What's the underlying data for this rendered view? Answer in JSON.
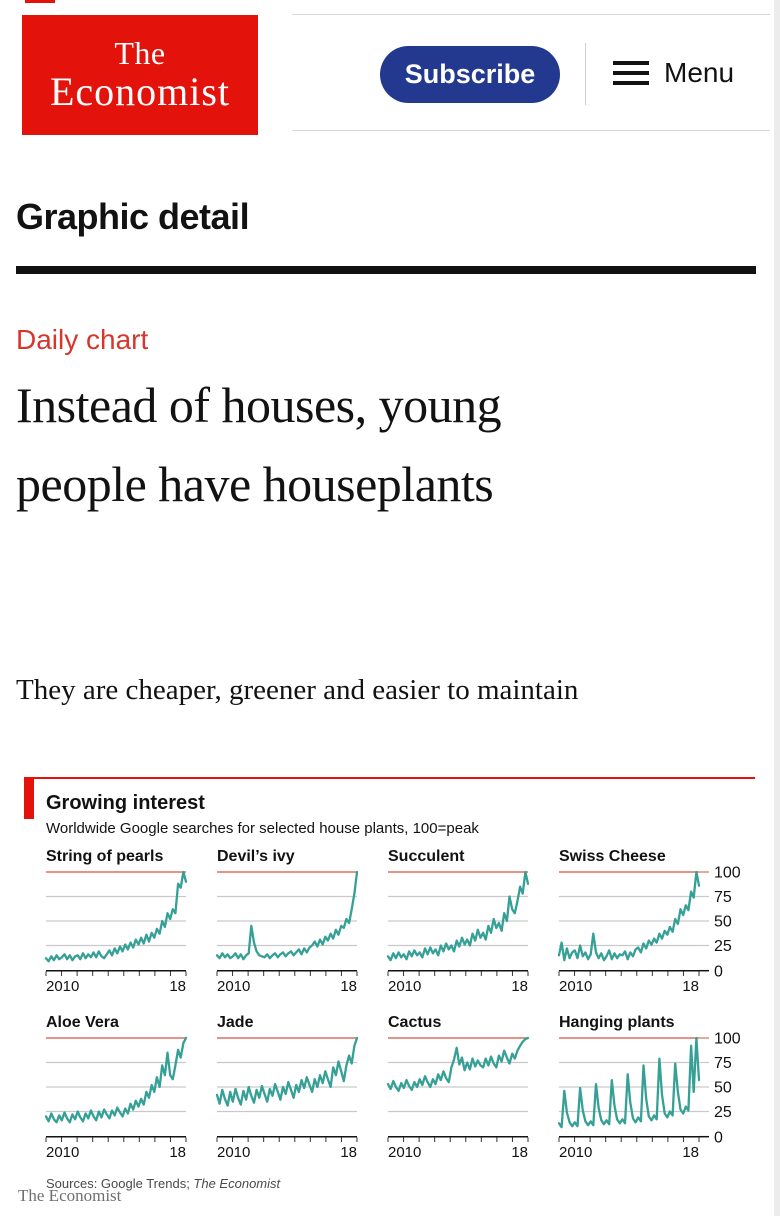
{
  "header": {
    "logo_line1": "The",
    "logo_line2": "Economist",
    "subscribe_label": "Subscribe",
    "menu_label": "Menu",
    "menu_icon": "hamburger"
  },
  "section": {
    "title": "Graphic detail"
  },
  "article": {
    "eyebrow": "Daily chart",
    "headline": "Instead of houses, young people have houseplants",
    "subheadline": "They are cheaper, greener and easier to maintain"
  },
  "chart_data": {
    "type": "line",
    "title": "Growing interest",
    "subtitle": "Worldwide Google searches for selected house plants, 100=peak",
    "x_start": 2010,
    "x_end": 2019,
    "xtick_labels": [
      "2010",
      "18"
    ],
    "ylim": [
      0,
      100
    ],
    "yticks": [
      0,
      25,
      50,
      75,
      100
    ],
    "grid": true,
    "legend_position": "panel titles above each small multiple",
    "line_color": "#35a096",
    "grid_color": "#c9c9c9",
    "top_rule_color": "#d9715f",
    "axis_color": "#121212",
    "series": [
      {
        "name": "String of pearls",
        "values": [
          12,
          9,
          14,
          10,
          15,
          11,
          13,
          16,
          11,
          15,
          10,
          14,
          15,
          11,
          17,
          12,
          16,
          13,
          18,
          13,
          19,
          14,
          12,
          16,
          20,
          15,
          22,
          17,
          24,
          19,
          26,
          21,
          28,
          23,
          31,
          26,
          33,
          27,
          36,
          29,
          38,
          33,
          42,
          37,
          50,
          44,
          58,
          52,
          62,
          58,
          88,
          84,
          100,
          90
        ]
      },
      {
        "name": "Devil’s ivy",
        "values": [
          15,
          12,
          17,
          13,
          16,
          12,
          14,
          17,
          12,
          16,
          11,
          15,
          17,
          45,
          28,
          19,
          15,
          14,
          13,
          16,
          12,
          15,
          17,
          13,
          16,
          18,
          14,
          17,
          19,
          15,
          18,
          21,
          16,
          22,
          18,
          23,
          25,
          29,
          24,
          31,
          26,
          34,
          30,
          37,
          32,
          41,
          36,
          45,
          43,
          52,
          48,
          62,
          78,
          100
        ]
      },
      {
        "name": "Succulent",
        "values": [
          14,
          10,
          17,
          12,
          18,
          13,
          16,
          11,
          19,
          14,
          20,
          15,
          18,
          13,
          22,
          16,
          23,
          17,
          21,
          15,
          25,
          19,
          27,
          21,
          25,
          19,
          30,
          24,
          33,
          26,
          31,
          25,
          37,
          30,
          41,
          33,
          38,
          31,
          45,
          38,
          52,
          43,
          48,
          40,
          58,
          50,
          75,
          62,
          58,
          70,
          85,
          78,
          100,
          88
        ]
      },
      {
        "name": "Swiss Cheese",
        "values": [
          15,
          28,
          10,
          22,
          12,
          18,
          20,
          12,
          25,
          14,
          18,
          11,
          16,
          37,
          18,
          12,
          17,
          10,
          14,
          20,
          11,
          17,
          12,
          16,
          15,
          19,
          11,
          18,
          14,
          21,
          23,
          18,
          27,
          22,
          30,
          26,
          32,
          28,
          37,
          32,
          40,
          36,
          44,
          39,
          52,
          47,
          62,
          56,
          66,
          61,
          80,
          74,
          100,
          86
        ]
      },
      {
        "name": "Aloe Vera",
        "values": [
          20,
          15,
          23,
          17,
          14,
          21,
          16,
          24,
          18,
          14,
          22,
          17,
          25,
          19,
          15,
          23,
          18,
          26,
          20,
          16,
          25,
          19,
          27,
          22,
          18,
          26,
          21,
          29,
          24,
          20,
          28,
          23,
          33,
          27,
          36,
          30,
          38,
          32,
          45,
          39,
          52,
          45,
          60,
          50,
          72,
          62,
          85,
          62,
          58,
          72,
          88,
          80,
          95,
          100
        ]
      },
      {
        "name": "Jade",
        "values": [
          42,
          33,
          47,
          38,
          31,
          45,
          35,
          48,
          39,
          32,
          46,
          37,
          50,
          41,
          34,
          47,
          39,
          51,
          43,
          35,
          48,
          41,
          53,
          45,
          37,
          50,
          43,
          55,
          47,
          39,
          52,
          45,
          57,
          49,
          60,
          52,
          45,
          58,
          50,
          62,
          54,
          66,
          58,
          50,
          70,
          62,
          76,
          66,
          56,
          72,
          82,
          74,
          92,
          100
        ]
      },
      {
        "name": "Cactus",
        "values": [
          53,
          48,
          56,
          50,
          46,
          54,
          49,
          57,
          51,
          47,
          55,
          50,
          58,
          52,
          61,
          55,
          50,
          58,
          53,
          63,
          57,
          66,
          59,
          55,
          70,
          78,
          90,
          73,
          80,
          67,
          75,
          68,
          79,
          71,
          77,
          72,
          70,
          79,
          72,
          81,
          74,
          70,
          82,
          76,
          87,
          80,
          74,
          84,
          79,
          87,
          92,
          96,
          99,
          100
        ]
      },
      {
        "name": "Hanging plants",
        "values": [
          13,
          9,
          46,
          24,
          14,
          10,
          14,
          10,
          49,
          26,
          15,
          11,
          15,
          11,
          53,
          29,
          16,
          12,
          16,
          12,
          57,
          31,
          17,
          13,
          17,
          13,
          63,
          34,
          18,
          14,
          19,
          15,
          72,
          38,
          20,
          16,
          21,
          17,
          79,
          42,
          23,
          19,
          25,
          21,
          74,
          45,
          27,
          23,
          30,
          26,
          92,
          45,
          100,
          57
        ]
      }
    ]
  },
  "chart_footer": {
    "sources_prefix": "Sources: Google Trends; ",
    "sources_publication": "The Economist"
  },
  "footer": {
    "brand": "The Economist"
  },
  "colors": {
    "brand_red": "#e3120b",
    "subscribe_blue": "#22398f",
    "line_teal": "#35a096"
  }
}
